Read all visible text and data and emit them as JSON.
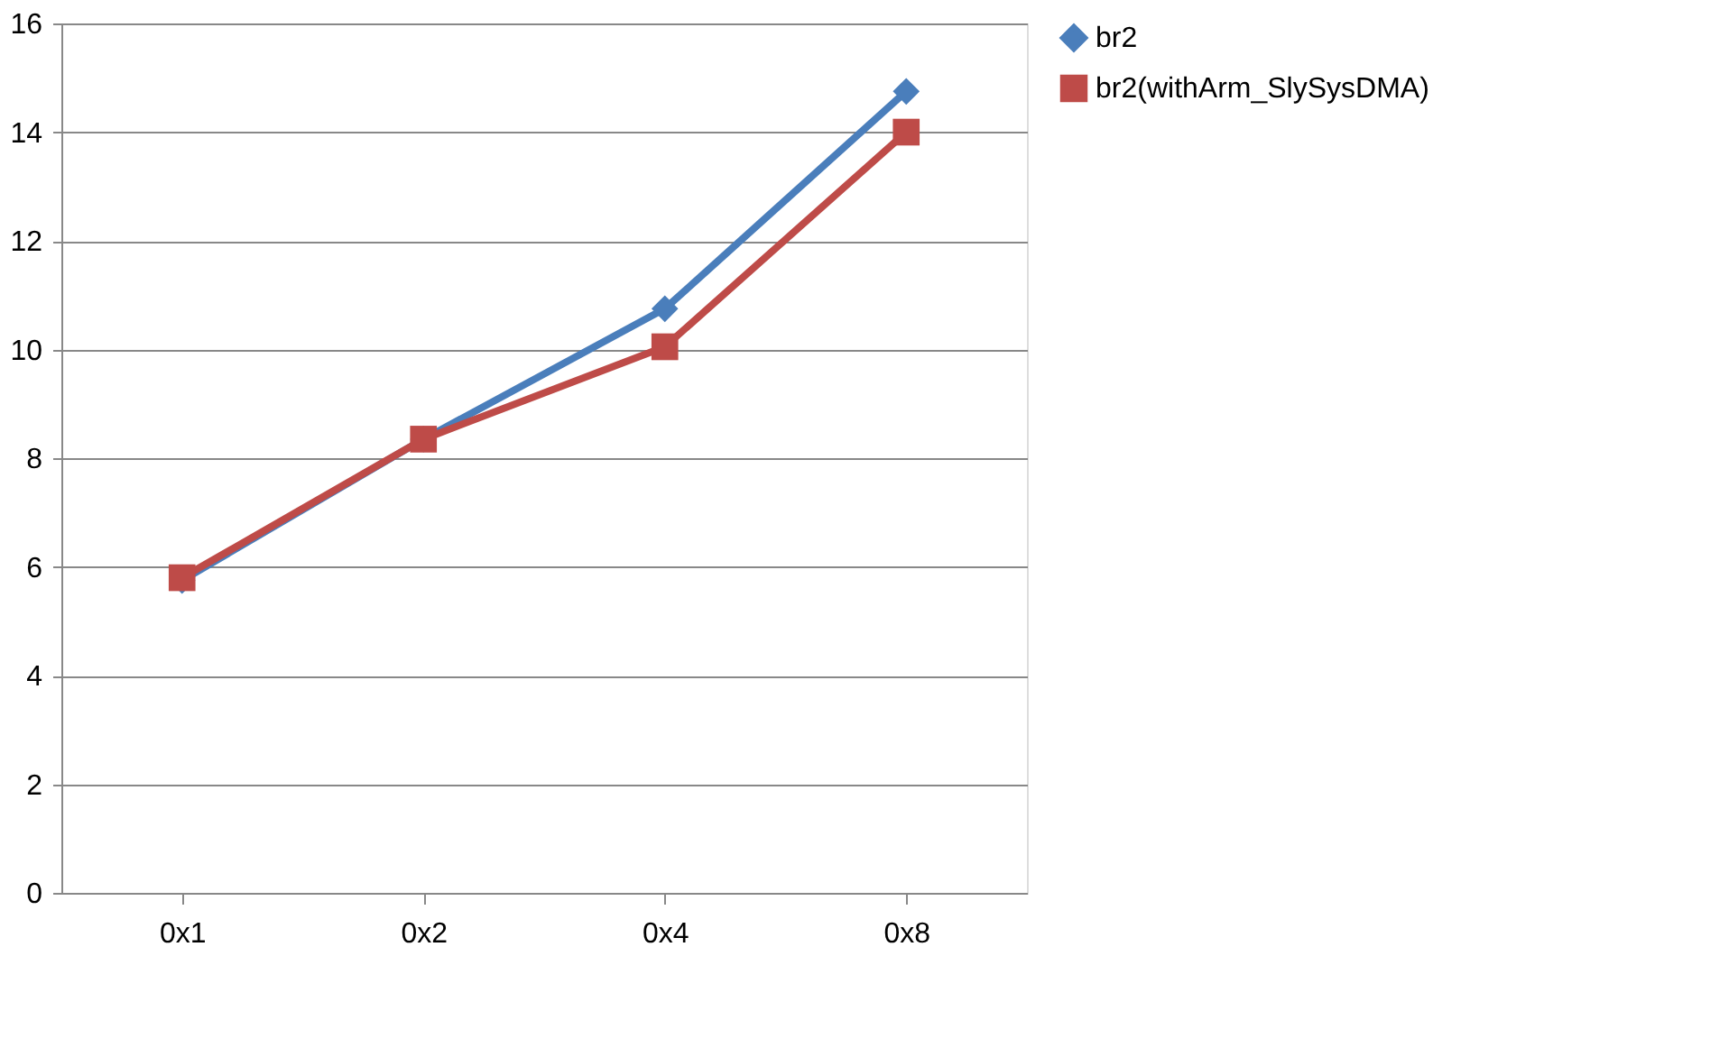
{
  "chart_data": {
    "type": "line",
    "categories": [
      "0x1",
      "0x2",
      "0x4",
      "0x8"
    ],
    "series": [
      {
        "name": "br2",
        "color": "#4a7ebb",
        "marker": "diamond",
        "values": [
          5.75,
          8.35,
          10.75,
          14.75
        ]
      },
      {
        "name": "br2(withArm_SlySysDMA)",
        "color": "#be4b48",
        "marker": "square",
        "values": [
          5.8,
          8.35,
          10.05,
          14.0
        ]
      }
    ],
    "ylim": [
      0,
      16
    ],
    "yticks": [
      0,
      2,
      4,
      6,
      8,
      10,
      12,
      14,
      16
    ],
    "grid": "y",
    "legend": "right",
    "line_style": "solid"
  }
}
